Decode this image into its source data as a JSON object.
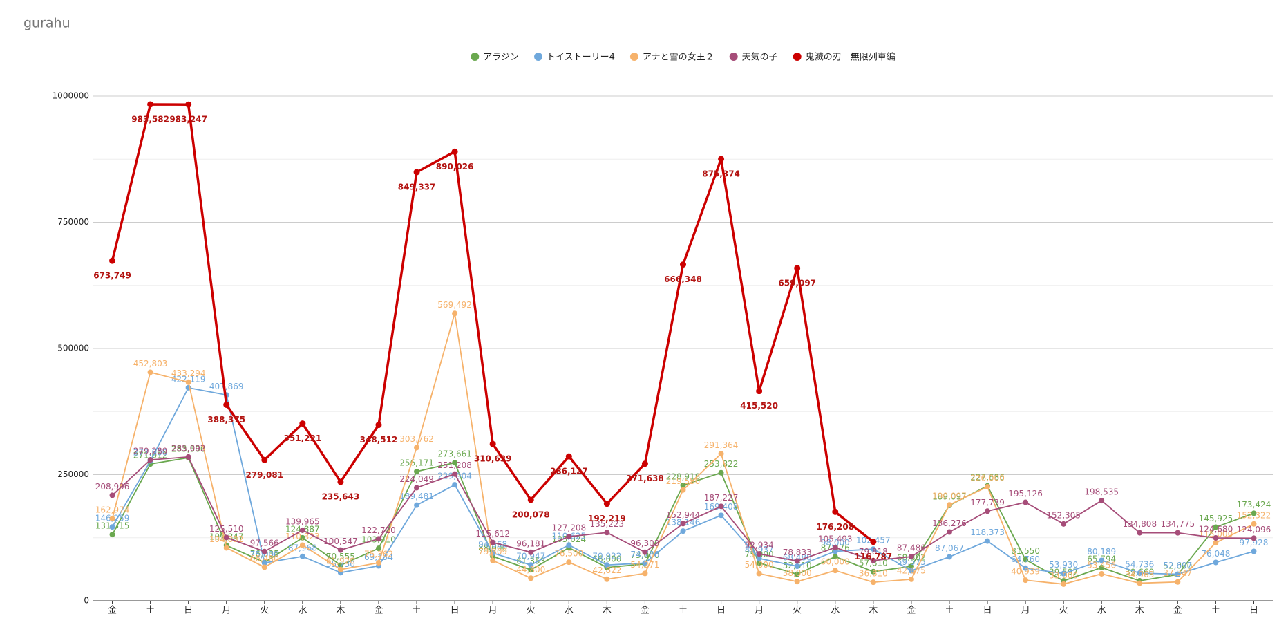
{
  "chart_data": {
    "type": "line",
    "title": "gurahu",
    "categories": [
      "金",
      "土",
      "日",
      "月",
      "火",
      "水",
      "木",
      "金",
      "土",
      "日",
      "月",
      "火",
      "水",
      "木",
      "金",
      "土",
      "日",
      "月",
      "火",
      "水",
      "木",
      "金",
      "土",
      "日",
      "月",
      "火",
      "水",
      "木",
      "金",
      "土",
      "日"
    ],
    "ylim": [
      0,
      1000000
    ],
    "yticks": [
      0,
      250000,
      500000,
      750000,
      1000000
    ],
    "grid": true,
    "legend": "top",
    "series": [
      {
        "name": "アラジン",
        "color": "#6aa84f",
        "values": [
          131315,
          271012,
          283500,
          109847,
          76035,
          124887,
          70555,
          103910,
          256171,
          273661,
          88000,
          61353,
          105024,
          66000,
          73000,
          228918,
          253822,
          75000,
          52610,
          87476,
          57810,
          68302,
          189097,
          227686,
          81550,
          39597,
          65794,
          39660,
          52000,
          145925,
          173424
        ],
        "value_labels": [
          "131,315",
          "271,012",
          "283,500",
          "109,847",
          "76,035",
          "124,887",
          "70,555",
          "103,910",
          "256,171",
          "273,661",
          "88,000",
          "61,353",
          "105,024",
          "66,000",
          "73,000",
          "228,918",
          "253,822",
          "75,000",
          "52,610",
          "87,476",
          "57,810",
          "68,302",
          "189,097",
          "227,686",
          "81,550",
          "39,597",
          "65,794",
          "39,660",
          "52,000",
          "145,925",
          "173,424"
        ]
      },
      {
        "name": "トイストーリー4",
        "color": "#6fa8dc",
        "values": [
          146259,
          277000,
          422119,
          407869,
          75000,
          87968,
          55730,
          69134,
          189481,
          229904,
          94668,
          70947,
          110625,
          70922,
          74786,
          138146,
          169408,
          83937,
          68480,
          98000,
          102457,
          59575,
          87067,
          118373,
          64760,
          53930,
          80189,
          54736,
          52697,
          76048,
          97928
        ],
        "value_labels": [
          "146,259",
          "277,000",
          "422,119",
          "407,869",
          "75,000",
          "87,968",
          "55,730",
          "69,134",
          "189,481",
          "229,904",
          "94,668",
          "70,947",
          "110,625",
          "70,922",
          "74,786",
          "138,146",
          "169,408",
          "83,937",
          "68,480",
          "98,000",
          "102,457",
          "59,575",
          "87,067",
          "118,373",
          "64,760",
          "53,930",
          "80,189",
          "54,736",
          "52,697",
          "76,048",
          "97,928"
        ]
      },
      {
        "name": "アナと雪の女王２",
        "color": "#f6b26b",
        "values": [
          162974,
          452803,
          433294,
          104832,
          66480,
          110323,
          61920,
          75362,
          303762,
          569492,
          79809,
          44800,
          76500,
          42822,
          54271,
          219550,
          291364,
          54000,
          38000,
          60000,
          36810,
          42675,
          190097,
          226000,
          40939,
          33000,
          53456,
          34963,
          37347,
          115000,
          152322
        ],
        "value_labels": [
          "162,974",
          "452,803",
          "433,294",
          "104,832",
          "66,480",
          "110,323",
          "61,920",
          "75,362",
          "303,762",
          "569,492",
          "79,809",
          "44,800",
          "76,500",
          "42,822",
          "54,271",
          "219,550",
          "291,364",
          "54,000",
          "38,000",
          "60,000",
          "36,810",
          "42,675",
          "190,097",
          "226,000",
          "40,939",
          "33,000",
          "53,456",
          "34,963",
          "37,347",
          "115,000",
          "152,322"
        ]
      },
      {
        "name": "天気の子",
        "color": "#a64d79",
        "values": [
          208996,
          279289,
          285092,
          125510,
          97566,
          139965,
          100547,
          122720,
          224049,
          251208,
          115612,
          96181,
          127208,
          135223,
          96303,
          152944,
          187227,
          92934,
          78833,
          105493,
          79818,
          87486,
          136276,
          177739,
          195126,
          152305,
          198535,
          134808,
          134775,
          124680,
          124096
        ],
        "value_labels": [
          "208,996",
          "279,289",
          "285,092",
          "125,510",
          "97,566",
          "139,965",
          "100,547",
          "122,720",
          "224,049",
          "251,208",
          "115,612",
          "96,181",
          "127,208",
          "135,223",
          "96,303",
          "152,944",
          "187,227",
          "92,934",
          "78,833",
          "105,493",
          "79,818",
          "87,486",
          "136,276",
          "177,739",
          "195,126",
          "152,305",
          "198,535",
          "134,808",
          "134,775",
          "124,680",
          "124,096"
        ]
      },
      {
        "name": "鬼滅の刃　無限列車編",
        "color": "#cc0000",
        "values": [
          673749,
          983582,
          983247,
          388375,
          279081,
          351221,
          235643,
          348512,
          849337,
          890026,
          310639,
          200078,
          286127,
          192219,
          271638,
          666348,
          875374,
          415520,
          659097,
          176208,
          116787,
          null,
          null,
          null,
          null,
          null,
          null,
          null,
          null,
          null,
          null
        ],
        "value_labels": [
          "673,749",
          "983,582",
          "983,247",
          "388,375",
          "279,081",
          "351,221",
          "235,643",
          "348,512",
          "849,337",
          "890,026",
          "310,639",
          "200,078",
          "286,127",
          "192,219",
          "271,638",
          "666,348",
          "875,374",
          "415,520",
          "659,097",
          "176,208",
          "116,787",
          null,
          null,
          null,
          null,
          null,
          null,
          null,
          null,
          null,
          null
        ]
      }
    ]
  }
}
